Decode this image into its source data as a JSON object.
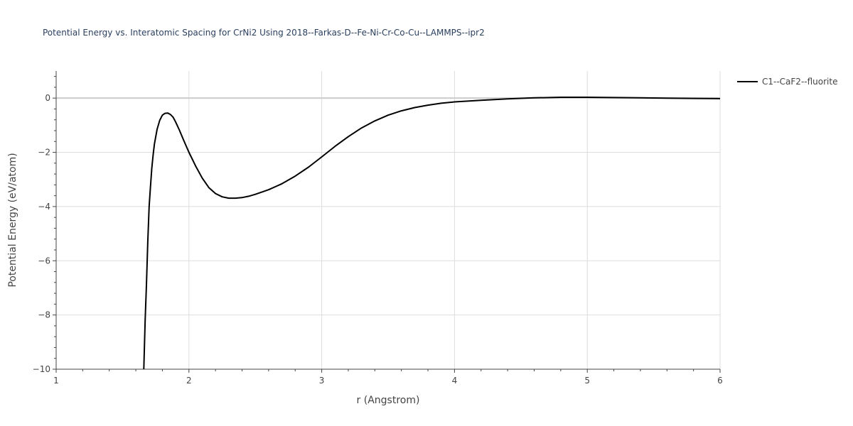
{
  "chart_data": {
    "type": "line",
    "title": "Potential Energy vs. Interatomic Spacing for CrNi2 Using 2018--Farkas-D--Fe-Ni-Cr-Co-Cu--LAMMPS--ipr2",
    "xlabel": "r (Angstrom)",
    "ylabel": "Potential Energy (eV/atom)",
    "xlim": [
      1,
      6
    ],
    "ylim": [
      -10,
      1
    ],
    "xticks": [
      1,
      2,
      3,
      4,
      5,
      6
    ],
    "yticks": [
      -10,
      -8,
      -6,
      -4,
      -2,
      0
    ],
    "xtick_labels": [
      "1",
      "2",
      "3",
      "4",
      "5",
      "6"
    ],
    "ytick_labels": [
      "−10",
      "−8",
      "−6",
      "−4",
      "−2",
      "0"
    ],
    "grid": true,
    "legend_position": "top-right",
    "series": [
      {
        "name": "C1--CaF2--fluorite",
        "color": "#000000",
        "x": [
          1.66,
          1.67,
          1.68,
          1.69,
          1.7,
          1.71,
          1.72,
          1.73,
          1.74,
          1.76,
          1.78,
          1.8,
          1.82,
          1.84,
          1.86,
          1.88,
          1.9,
          1.93,
          1.96,
          2.0,
          2.05,
          2.1,
          2.15,
          2.2,
          2.25,
          2.3,
          2.35,
          2.4,
          2.45,
          2.5,
          2.6,
          2.7,
          2.8,
          2.9,
          3.0,
          3.1,
          3.2,
          3.3,
          3.4,
          3.5,
          3.6,
          3.7,
          3.8,
          3.9,
          4.0,
          4.2,
          4.4,
          4.6,
          4.8,
          5.0,
          5.2,
          5.4,
          5.6,
          5.8,
          6.0
        ],
        "y": [
          -10.0,
          -8.2,
          -6.9,
          -5.3,
          -4.0,
          -3.3,
          -2.6,
          -2.1,
          -1.7,
          -1.15,
          -0.82,
          -0.63,
          -0.56,
          -0.55,
          -0.6,
          -0.7,
          -0.88,
          -1.2,
          -1.55,
          -2.0,
          -2.5,
          -2.95,
          -3.3,
          -3.52,
          -3.64,
          -3.69,
          -3.69,
          -3.67,
          -3.62,
          -3.55,
          -3.38,
          -3.16,
          -2.88,
          -2.55,
          -2.17,
          -1.78,
          -1.42,
          -1.1,
          -0.84,
          -0.63,
          -0.47,
          -0.35,
          -0.26,
          -0.19,
          -0.14,
          -0.08,
          -0.03,
          0.01,
          0.03,
          0.03,
          0.02,
          0.01,
          0.0,
          -0.01,
          -0.02
        ]
      }
    ]
  }
}
